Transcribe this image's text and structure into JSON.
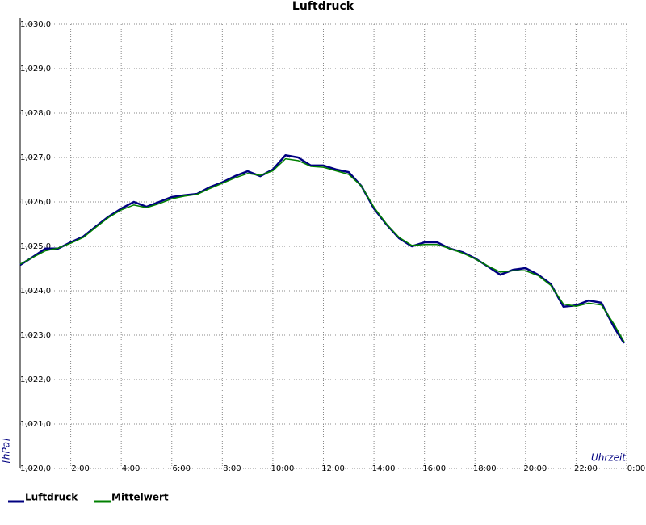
{
  "chart_data": {
    "type": "line",
    "title": "Luftdruck",
    "y_label": "[hPa]",
    "x_label": "Uhrzeit",
    "x": [
      0,
      0.5,
      1,
      1.5,
      2,
      2.5,
      3,
      3.5,
      4,
      4.5,
      5,
      5.5,
      6,
      6.5,
      7,
      7.5,
      8,
      8.5,
      9,
      9.5,
      10,
      10.5,
      11,
      11.5,
      12,
      12.5,
      13,
      13.5,
      14,
      14.5,
      15,
      15.5,
      16,
      16.5,
      17,
      17.5,
      18,
      18.5,
      19,
      19.5,
      20,
      20.5,
      21,
      21.5,
      22,
      22.5,
      23,
      23.5,
      23.9
    ],
    "series": [
      {
        "name": "Luftdruck",
        "color": "#000080",
        "values": [
          1024.58,
          1024.76,
          1024.95,
          1024.95,
          1025.09,
          1025.22,
          1025.45,
          1025.67,
          1025.85,
          1026.0,
          1025.89,
          1026.0,
          1026.11,
          1026.15,
          1026.18,
          1026.33,
          1026.44,
          1026.58,
          1026.69,
          1026.58,
          1026.73,
          1027.05,
          1027.0,
          1026.82,
          1026.82,
          1026.73,
          1026.67,
          1026.36,
          1025.85,
          1025.49,
          1025.18,
          1025.0,
          1025.09,
          1025.09,
          1024.95,
          1024.87,
          1024.73,
          1024.55,
          1024.36,
          1024.47,
          1024.51,
          1024.36,
          1024.15,
          1023.64,
          1023.67,
          1023.78,
          1023.73,
          1023.18,
          1022.82
        ]
      },
      {
        "name": "Mittelwert",
        "color": "#008000",
        "values": [
          1024.6,
          1024.75,
          1024.9,
          1024.96,
          1025.07,
          1025.2,
          1025.43,
          1025.65,
          1025.82,
          1025.93,
          1025.87,
          1025.96,
          1026.07,
          1026.13,
          1026.17,
          1026.3,
          1026.42,
          1026.54,
          1026.64,
          1026.6,
          1026.7,
          1026.97,
          1026.93,
          1026.8,
          1026.78,
          1026.7,
          1026.62,
          1026.36,
          1025.88,
          1025.5,
          1025.2,
          1025.02,
          1025.04,
          1025.04,
          1024.95,
          1024.85,
          1024.72,
          1024.56,
          1024.42,
          1024.45,
          1024.45,
          1024.34,
          1024.12,
          1023.7,
          1023.65,
          1023.72,
          1023.68,
          1023.25,
          1022.85
        ]
      }
    ],
    "ylim": [
      1020,
      1030
    ],
    "yticks": [
      {
        "value": 1020,
        "label": "1,020,0"
      },
      {
        "value": 1021,
        "label": "1,021,0"
      },
      {
        "value": 1022,
        "label": "1,022,0"
      },
      {
        "value": 1023,
        "label": "1,023,0"
      },
      {
        "value": 1024,
        "label": "1,024,0"
      },
      {
        "value": 1025,
        "label": "1,025,0"
      },
      {
        "value": 1026,
        "label": "1,026,0"
      },
      {
        "value": 1027,
        "label": "1,027,0"
      },
      {
        "value": 1028,
        "label": "1,028,0"
      },
      {
        "value": 1029,
        "label": "1,029,0"
      },
      {
        "value": 1030,
        "label": "1,030,0"
      }
    ],
    "xlim": [
      0,
      24
    ],
    "xticks": [
      {
        "value": 2,
        "label": "2:00"
      },
      {
        "value": 4,
        "label": "4:00"
      },
      {
        "value": 6,
        "label": "6:00"
      },
      {
        "value": 8,
        "label": "8:00"
      },
      {
        "value": 10,
        "label": "10:00"
      },
      {
        "value": 12,
        "label": "12:00"
      },
      {
        "value": 14,
        "label": "14:00"
      },
      {
        "value": 16,
        "label": "16:00"
      },
      {
        "value": 18,
        "label": "18:00"
      },
      {
        "value": 20,
        "label": "20:00"
      },
      {
        "value": 22,
        "label": "22:00"
      },
      {
        "value": 24,
        "label": "0:00"
      }
    ],
    "grid": true,
    "legend": "bottom-left"
  }
}
